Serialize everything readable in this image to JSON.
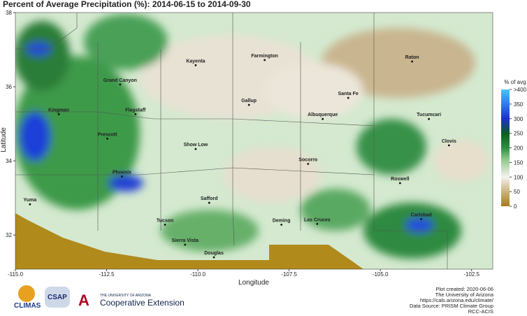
{
  "map": {
    "title": "Percent of Average Precipitation (%): 2014-06-15 to 2014-09-30",
    "x_label": "Longitude",
    "y_label": "Latitude",
    "xlim": [
      -115,
      -101.92
    ],
    "ylim": [
      31.08,
      38
    ],
    "xticks": [
      {
        "value": -115,
        "label": "-115.0"
      },
      {
        "value": -112.5,
        "label": "-112.5"
      },
      {
        "value": -110,
        "label": "-110.0"
      },
      {
        "value": -107.5,
        "label": "-107.5"
      },
      {
        "value": -105,
        "label": "-105.0"
      },
      {
        "value": -102.5,
        "label": "-102.5"
      }
    ],
    "yticks": [
      32,
      34,
      36,
      38
    ],
    "colorbar": {
      "title": "% of avg",
      "lim": [
        0,
        400
      ],
      "ticks": [
        0,
        50,
        100,
        150,
        200,
        250,
        300,
        350,
        {
          "value": 400,
          "label": ">400"
        }
      ]
    },
    "cities": [
      {
        "name": "Kayenta",
        "lon": -110.06,
        "lat": 36.58
      },
      {
        "name": "Farmington",
        "lon": -108.17,
        "lat": 36.72
      },
      {
        "name": "Raton",
        "lon": -104.13,
        "lat": 36.68
      },
      {
        "name": "Grand Canyon",
        "lon": -112.13,
        "lat": 36.06
      },
      {
        "name": "Santa Fe",
        "lon": -105.88,
        "lat": 35.7
      },
      {
        "name": "Gallup",
        "lon": -108.6,
        "lat": 35.51
      },
      {
        "name": "Kingman",
        "lon": -113.81,
        "lat": 35.26
      },
      {
        "name": "Flagstaff",
        "lon": -111.71,
        "lat": 35.26
      },
      {
        "name": "Albuquerque",
        "lon": -106.58,
        "lat": 35.13
      },
      {
        "name": "Tucumcari",
        "lon": -103.67,
        "lat": 35.13
      },
      {
        "name": "Prescott",
        "lon": -112.48,
        "lat": 34.6
      },
      {
        "name": "Clovis",
        "lon": -103.12,
        "lat": 34.42
      },
      {
        "name": "Show Low",
        "lon": -110.06,
        "lat": 34.32
      },
      {
        "name": "Socorro",
        "lon": -106.98,
        "lat": 33.92
      },
      {
        "name": "Phoenix",
        "lon": -112.08,
        "lat": 33.58
      },
      {
        "name": "Roswell",
        "lon": -104.46,
        "lat": 33.4
      },
      {
        "name": "Yuma",
        "lon": -114.6,
        "lat": 32.83
      },
      {
        "name": "Safford",
        "lon": -109.69,
        "lat": 32.87
      },
      {
        "name": "Carlsbad",
        "lon": -103.88,
        "lat": 32.43
      },
      {
        "name": "Las Cruces",
        "lon": -106.73,
        "lat": 32.3
      },
      {
        "name": "Deming",
        "lon": -107.71,
        "lat": 32.28
      },
      {
        "name": "Tucson",
        "lon": -110.9,
        "lat": 32.28
      },
      {
        "name": "Sierra Vista",
        "lon": -110.35,
        "lat": 31.74
      },
      {
        "name": "Douglas",
        "lon": -109.56,
        "lat": 31.4
      }
    ]
  },
  "footer": {
    "lines": [
      "Plot created: 2020-06-06",
      "The University of Arizona",
      "https://cals.arizona.edu/climate/",
      "Data Source: PRISM Climate Group",
      "RCC-ACIS"
    ]
  },
  "logos": {
    "climas": "CLIMAS",
    "csap": "CSAP",
    "ua_small": "THE UNIVERSITY OF ARIZONA",
    "ua_ext": "Cooperative Extension"
  }
}
